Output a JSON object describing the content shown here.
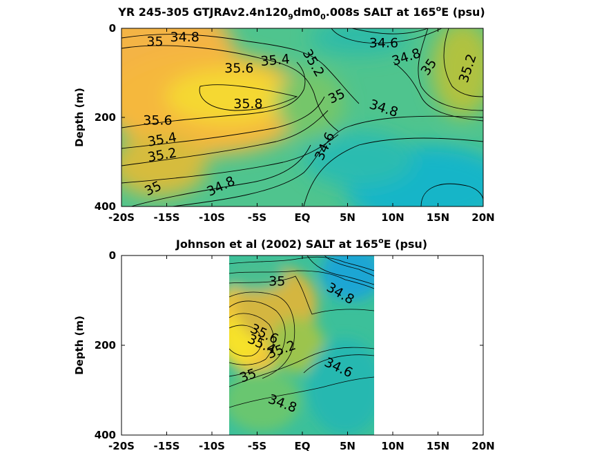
{
  "chart_data": [
    {
      "type": "heatmap",
      "title": {
        "p1": "YR 245-305 GTJRAv2.4n120",
        "s1": "9",
        "p2": "dm0",
        "s2": "0",
        "p3": ".008s SALT at 165",
        "sup": "o",
        "p4": "E (psu)"
      },
      "ylabel": "Depth (m)",
      "xlim": [
        -20,
        20
      ],
      "ylim": [
        0,
        400
      ],
      "y_reversed": true,
      "x_ticks": [
        -20,
        -15,
        -10,
        -5,
        0,
        5,
        10,
        15,
        20
      ],
      "x_tick_labels": [
        "-20S",
        "-15S",
        "-10S",
        "-5S",
        "EQ",
        "5N",
        "10N",
        "15N",
        "20N"
      ],
      "y_ticks": [
        0,
        200,
        400
      ],
      "y_tick_labels": [
        "0",
        "200",
        "400"
      ],
      "colormap": "parula",
      "contour_interval": 0.2,
      "contour_labels": [
        {
          "text": "35",
          "x": -16.3,
          "y": 30,
          "rot": 0
        },
        {
          "text": "34.8",
          "x": -13.0,
          "y": 20,
          "rot": 0
        },
        {
          "text": "35.4",
          "x": -3.0,
          "y": 72,
          "rot": -5
        },
        {
          "text": "35.2",
          "x": 1.2,
          "y": 78,
          "rot": 60
        },
        {
          "text": "35.6",
          "x": -7.0,
          "y": 90,
          "rot": 0
        },
        {
          "text": "35.8",
          "x": -6.0,
          "y": 170,
          "rot": 0
        },
        {
          "text": "35.6",
          "x": -16.0,
          "y": 207,
          "rot": 0
        },
        {
          "text": "35.4",
          "x": -15.5,
          "y": 250,
          "rot": -10
        },
        {
          "text": "35.2",
          "x": -15.5,
          "y": 285,
          "rot": -10
        },
        {
          "text": "35",
          "x": 3.8,
          "y": 153,
          "rot": -25
        },
        {
          "text": "34.6",
          "x": 9.0,
          "y": 33,
          "rot": 0
        },
        {
          "text": "34.8",
          "x": 11.5,
          "y": 65,
          "rot": -18
        },
        {
          "text": "35",
          "x": 14.0,
          "y": 87,
          "rot": -55
        },
        {
          "text": "35.2",
          "x": 18.3,
          "y": 90,
          "rot": -72
        },
        {
          "text": "34.8",
          "x": 9.0,
          "y": 180,
          "rot": 18
        },
        {
          "text": "34.6",
          "x": 2.5,
          "y": 265,
          "rot": -65
        },
        {
          "text": "35",
          "x": -16.5,
          "y": 360,
          "rot": -25
        },
        {
          "text": "34.8",
          "x": -9.0,
          "y": 355,
          "rot": -25
        }
      ]
    },
    {
      "type": "heatmap",
      "title": {
        "p1": "Johnson et al (2002) SALT at 165",
        "sup": "o",
        "p2": "E (psu)"
      },
      "ylabel": "Depth (m)",
      "xlim": [
        -20,
        20
      ],
      "ylim": [
        0,
        400
      ],
      "y_reversed": true,
      "data_extent_x": [
        -8,
        8
      ],
      "x_ticks": [
        -20,
        -15,
        -10,
        -5,
        0,
        5,
        10,
        15,
        20
      ],
      "x_tick_labels": [
        "-20S",
        "-15S",
        "-10S",
        "-5S",
        "EQ",
        "5N",
        "10N",
        "15N",
        "20N"
      ],
      "y_ticks": [
        0,
        200,
        400
      ],
      "y_tick_labels": [
        "0",
        "200",
        "400"
      ],
      "colormap": "parula",
      "contour_interval": 0.2,
      "contour_labels": [
        {
          "text": "35",
          "x": -2.8,
          "y": 58,
          "rot": 0
        },
        {
          "text": "34.8",
          "x": 4.2,
          "y": 85,
          "rot": 30
        },
        {
          "text": "35.6",
          "x": -4.2,
          "y": 175,
          "rot": 25
        },
        {
          "text": "35.4",
          "x": -4.5,
          "y": 198,
          "rot": 25
        },
        {
          "text": "35.2",
          "x": -2.3,
          "y": 210,
          "rot": -20
        },
        {
          "text": "34.6",
          "x": 4.0,
          "y": 250,
          "rot": 25
        },
        {
          "text": "35",
          "x": -6.0,
          "y": 268,
          "rot": -20
        },
        {
          "text": "34.8",
          "x": -2.2,
          "y": 330,
          "rot": 20
        }
      ]
    }
  ]
}
